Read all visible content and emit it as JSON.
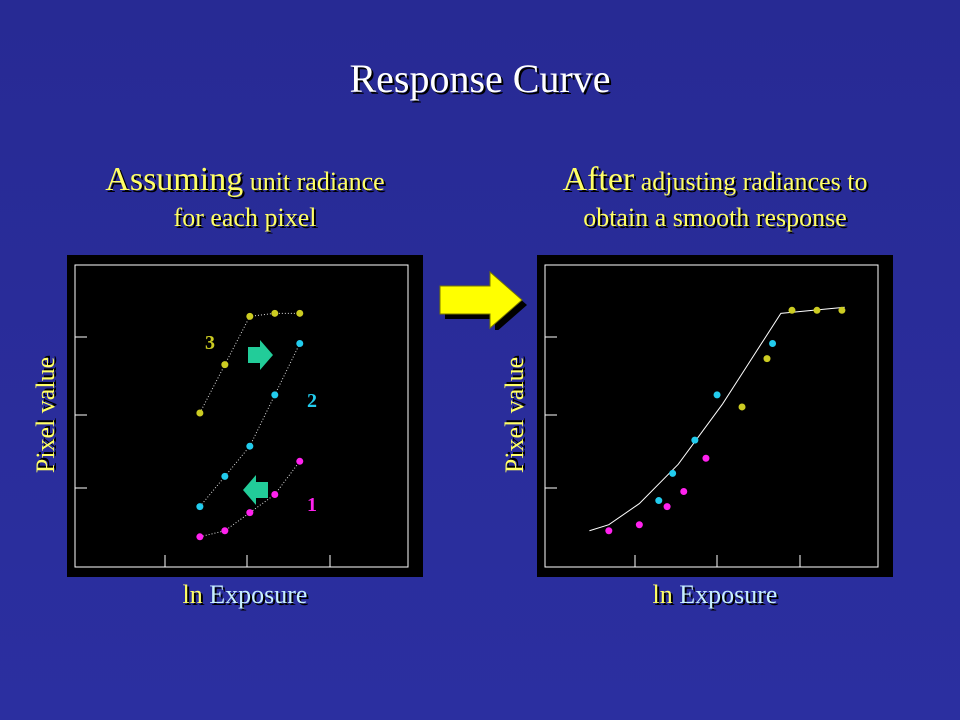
{
  "title": "Response Curve",
  "left_panel": {
    "caption_big": "Assuming",
    "caption_rest": " unit radiance",
    "caption_line2": "for each pixel",
    "ylabel": "Pixel value",
    "xlabel_ln": "ln",
    "xlabel_rest": " Exposure",
    "curve_labels": [
      "1",
      "2",
      "3"
    ]
  },
  "right_panel": {
    "caption_big": "After",
    "caption_rest": " adjusting radiances to",
    "caption_line2": "obtain a smooth response",
    "ylabel": "Pixel value",
    "xlabel_ln": "ln",
    "xlabel_rest": " Exposure"
  },
  "colors": {
    "curve1": "#ff22ee",
    "curve2": "#22ccee",
    "curve3": "#cccc22",
    "caption": "#ffff66",
    "arrow_small": "#22cc99",
    "arrow_big": "#ffff00"
  },
  "chart_data": [
    {
      "type": "scatter",
      "title": "",
      "xlabel": "ln Exposure",
      "ylabel": "Pixel value",
      "xlim": [
        0,
        12
      ],
      "ylim": [
        0,
        100
      ],
      "grid": false,
      "series": [
        {
          "name": "1",
          "color": "#ff22ee",
          "x": [
            4.5,
            5.4,
            6.3,
            7.2,
            8.1
          ],
          "y": [
            10,
            12,
            18,
            24,
            35
          ]
        },
        {
          "name": "2",
          "color": "#22ccee",
          "x": [
            4.5,
            5.4,
            6.3,
            7.2,
            8.1
          ],
          "y": [
            20,
            30,
            40,
            57,
            74
          ]
        },
        {
          "name": "3",
          "color": "#cccc22",
          "x": [
            4.5,
            5.4,
            6.3,
            7.2,
            8.1
          ],
          "y": [
            51,
            67,
            83,
            84,
            84
          ]
        }
      ],
      "annotations": [
        {
          "text": "1",
          "x": 8.2,
          "y": 21
        },
        {
          "text": "2",
          "x": 8.2,
          "y": 56
        },
        {
          "text": "3",
          "x": 4.8,
          "y": 74
        }
      ]
    },
    {
      "type": "line",
      "title": "",
      "xlabel": "ln Exposure",
      "ylabel": "Pixel value",
      "xlim": [
        0,
        12
      ],
      "ylim": [
        0,
        100
      ],
      "grid": false,
      "curve": {
        "x": [
          1.6,
          2.3,
          3.4,
          4.8,
          6.4,
          7.1,
          8.5,
          10.8
        ],
        "y": [
          12,
          14,
          21,
          34,
          54,
          64,
          84,
          86
        ]
      },
      "series": [
        {
          "name": "1",
          "color": "#ff22ee",
          "x": [
            2.3,
            3.4,
            4.4,
            5.0,
            5.8
          ],
          "y": [
            12,
            14,
            20,
            25,
            36
          ]
        },
        {
          "name": "2",
          "color": "#22ccee",
          "x": [
            4.1,
            4.6,
            5.4,
            6.2,
            8.2
          ],
          "y": [
            22,
            31,
            42,
            57,
            74
          ]
        },
        {
          "name": "3",
          "color": "#cccc22",
          "x": [
            7.1,
            8.0,
            8.9,
            9.8,
            10.7
          ],
          "y": [
            53,
            69,
            85,
            85,
            85
          ]
        }
      ]
    }
  ]
}
